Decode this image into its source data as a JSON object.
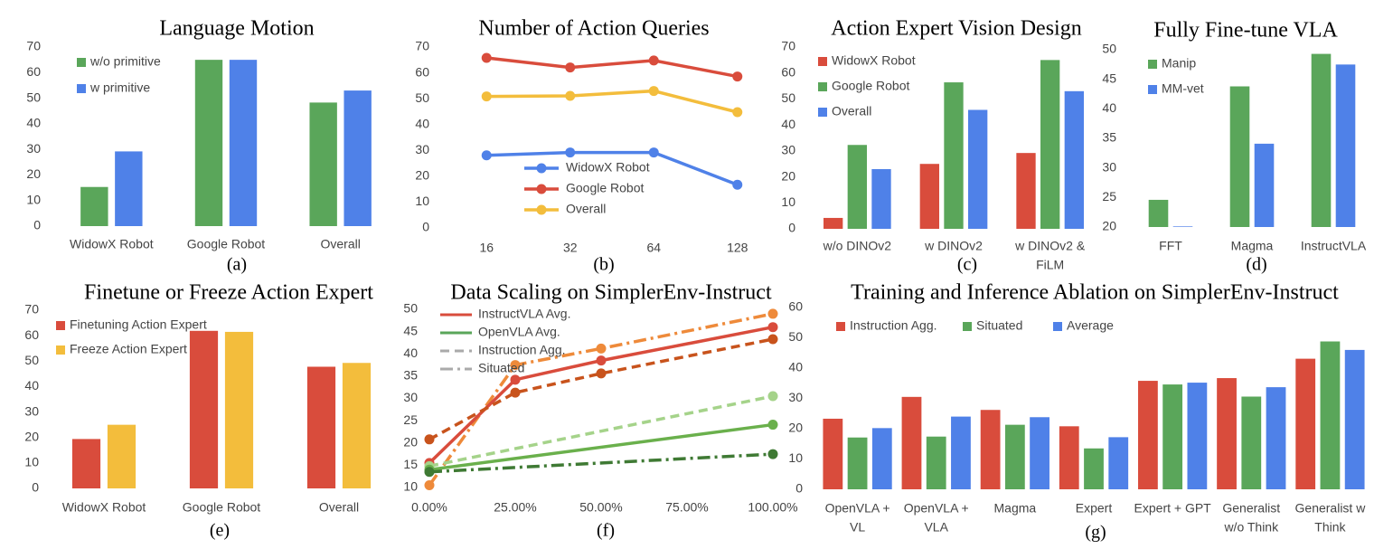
{
  "chart_data": [
    {
      "type": "bar",
      "title": "Language Motion",
      "caption": "(a)",
      "categories": [
        "WidowX Robot",
        "Google Robot",
        "Overall"
      ],
      "series": [
        {
          "name": "w/o primitive",
          "color": "#5aa65a",
          "values": [
            15.3,
            65,
            48.3
          ]
        },
        {
          "name": "w primitive",
          "color": "#4f81e8",
          "values": [
            29.2,
            65,
            53
          ]
        }
      ],
      "ylim": [
        0,
        70
      ],
      "yticks": [
        0,
        10,
        20,
        30,
        40,
        50,
        60,
        70
      ]
    },
    {
      "type": "line",
      "title": "Number of Action Queries",
      "caption": "(b)",
      "categories": [
        "16",
        "32",
        "64",
        "128"
      ],
      "series": [
        {
          "name": "WidowX Robot",
          "color": "#4f81e8",
          "values": [
            28.1,
            29.2,
            29.2,
            16.7
          ]
        },
        {
          "name": "Google Robot",
          "color": "#d94c3c",
          "values": [
            65.8,
            62.1,
            64.8,
            58.6
          ]
        },
        {
          "name": "Overall",
          "color": "#f3bd3c",
          "values": [
            50.9,
            51.1,
            53,
            44.8
          ]
        }
      ],
      "ylim": [
        0,
        70
      ],
      "yticks": [
        0,
        10,
        20,
        30,
        40,
        50,
        60,
        70
      ]
    },
    {
      "type": "bar",
      "title": "Action Expert Vision Design",
      "caption": "(c)",
      "categories": [
        "w/o DINOv2",
        "w DINOv2",
        [
          "w DINOv2 &",
          "FiLM"
        ]
      ],
      "series": [
        {
          "name": "WidowX Robot",
          "color": "#d94c3c",
          "values": [
            4.2,
            25,
            29.2
          ]
        },
        {
          "name": "Google Robot",
          "color": "#5aa65a",
          "values": [
            32.3,
            56.4,
            65
          ]
        },
        {
          "name": "Overall",
          "color": "#4f81e8",
          "values": [
            23,
            45.8,
            53
          ]
        }
      ],
      "ylim": [
        0,
        70
      ],
      "yticks": [
        0,
        10,
        20,
        30,
        40,
        50,
        60,
        70
      ]
    },
    {
      "type": "bar",
      "title": "Fully Fine-tune VLA",
      "caption": "(d)",
      "categories": [
        "FFT",
        "Magma",
        "InstructVLA"
      ],
      "series": [
        {
          "name": "Manip",
          "color": "#5aa65a",
          "values": [
            24.6,
            43.8,
            49.3
          ]
        },
        {
          "name": "MM-vet",
          "color": "#4f81e8",
          "values": [
            20.1,
            34.1,
            47.5
          ]
        }
      ],
      "ylim": [
        20,
        50
      ],
      "yticks": [
        20,
        25,
        30,
        35,
        40,
        45,
        50
      ]
    },
    {
      "type": "bar",
      "title": "Finetune or Freeze Action Expert",
      "caption": "(e)",
      "categories": [
        "WidowX Robot",
        "Google Robot",
        "Overall"
      ],
      "series": [
        {
          "name": "Finetuning Action Expert",
          "color": "#d94c3c",
          "values": [
            19.4,
            61.9,
            47.8
          ]
        },
        {
          "name": "Freeze Action Expert",
          "color": "#f3bd3c",
          "values": [
            25,
            61.5,
            49.3
          ]
        }
      ],
      "ylim": [
        0,
        70
      ],
      "yticks": [
        0,
        10,
        20,
        30,
        40,
        50,
        60,
        70
      ]
    },
    {
      "type": "scatterline",
      "title": "Data Scaling on SimplerEnv-Instruct",
      "caption": "(f)",
      "x": [
        0,
        25,
        50,
        100
      ],
      "legend": [
        {
          "label": "InstructVLA Avg.",
          "color": "#d94c3c",
          "dash": "solid"
        },
        {
          "label": "OpenVLA Avg.",
          "color": "#5aa65a",
          "dash": "solid"
        },
        {
          "label": "Instruction Agg.",
          "color": "#aaaaaa",
          "dash": "dashed"
        },
        {
          "label": "Situated",
          "color": "#aaaaaa",
          "dash": "dashdot"
        }
      ],
      "series": [
        {
          "color": "#ee8a3a",
          "dash": "dashdot",
          "values": [
            10.5,
            37.5,
            41.2,
            49
          ]
        },
        {
          "color": "#d94c3c",
          "dash": "solid",
          "values": [
            15.5,
            34.2,
            38.5,
            46
          ]
        },
        {
          "color": "#c8531c",
          "dash": "dashed",
          "values": [
            20.8,
            31.3,
            35.6,
            43.3
          ]
        },
        {
          "color": "#a5d38a",
          "dash": "dashed",
          "x": [
            0,
            100
          ],
          "values": [
            14.8,
            30.5
          ]
        },
        {
          "color": "#6ab04c",
          "dash": "solid",
          "x": [
            0,
            100
          ],
          "values": [
            14,
            24.1
          ]
        },
        {
          "color": "#3f7a34",
          "dash": "dashdot",
          "x": [
            0,
            100
          ],
          "values": [
            13.5,
            17.5
          ]
        }
      ],
      "xlim": [
        0,
        100
      ],
      "xticks": [
        {
          "value": 0,
          "label": "0.00%"
        },
        {
          "value": 25,
          "label": "25.00%"
        },
        {
          "value": 50,
          "label": "50.00%"
        },
        {
          "value": 75,
          "label": "75.00%"
        },
        {
          "value": 100,
          "label": "100.00%"
        }
      ],
      "ylim": [
        10,
        50
      ],
      "yticks": [
        10,
        15,
        20,
        25,
        30,
        35,
        40,
        45,
        50
      ]
    },
    {
      "type": "bar",
      "title": "Training and Inference Ablation on SimplerEnv-Instruct",
      "caption": "(g)",
      "categories": [
        [
          "OpenVLA +",
          "VL"
        ],
        [
          "OpenVLA +",
          "VLA"
        ],
        "Magma",
        "Expert",
        "Expert + GPT",
        [
          "Generalist",
          "w/o Think"
        ],
        [
          "Generalist w",
          "Think"
        ]
      ],
      "series": [
        {
          "name": "Instruction Agg.",
          "color": "#d94c3c",
          "values": [
            23.3,
            30.5,
            26.2,
            20.8,
            35.8,
            36.7,
            43.1
          ]
        },
        {
          "name": "Situated",
          "color": "#5aa65a",
          "values": [
            17.1,
            17.4,
            21.3,
            13.5,
            34.6,
            30.6,
            48.8
          ]
        },
        {
          "name": "Average",
          "color": "#4f81e8",
          "values": [
            20.2,
            24,
            23.8,
            17.2,
            35.2,
            33.7,
            46
          ]
        }
      ],
      "ylim": [
        0,
        60
      ],
      "yticks": [
        0,
        10,
        20,
        30,
        40,
        50,
        60
      ]
    }
  ]
}
